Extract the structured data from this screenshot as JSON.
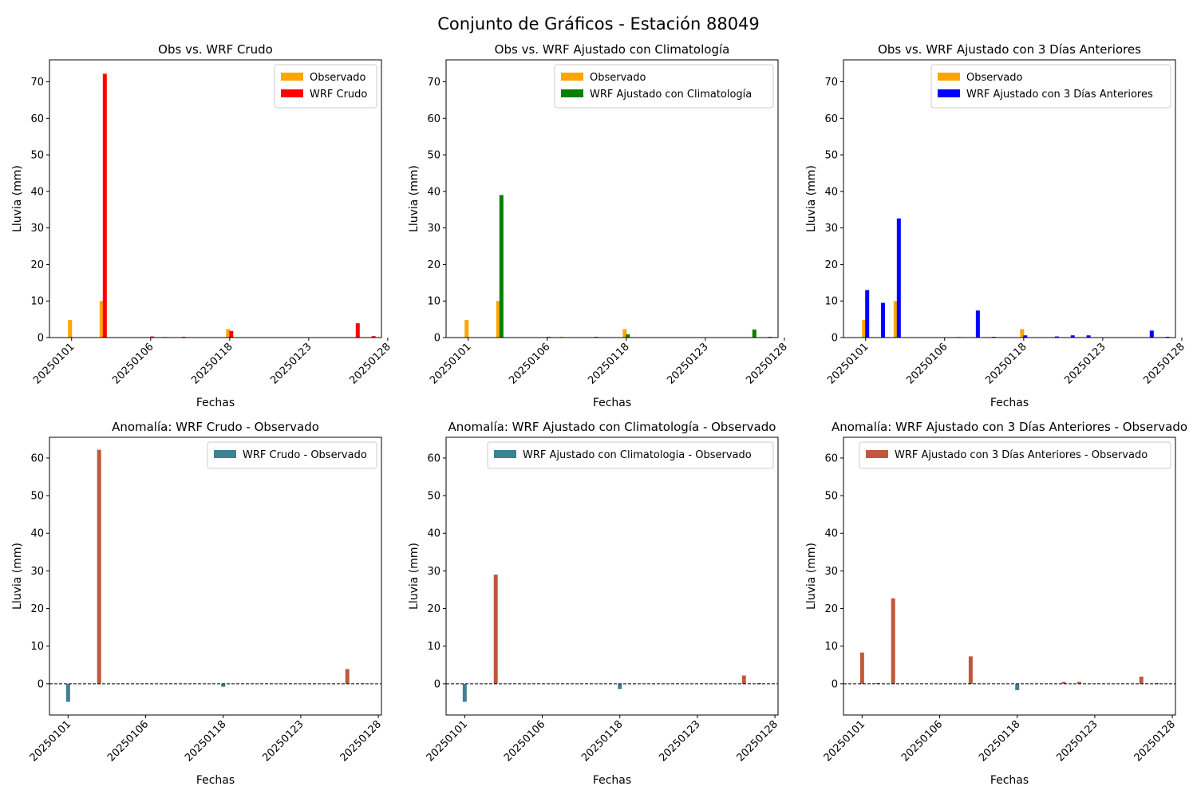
{
  "figure": {
    "title": "Conjunto de Gráficos - Estación 88049"
  },
  "colors": {
    "observado": "#ffa500",
    "wrf_crudo": "#ff0000",
    "wrf_clim": "#008000",
    "wrf_3d": "#0000ff",
    "anom_pos": "#c0583d",
    "anom_neg": "#3f8094",
    "zero_line": "#000000"
  },
  "chart_data": [
    {
      "type": "bar",
      "title": "Obs vs. WRF Crudo",
      "xlabel": "Fechas",
      "ylabel": "Lluvia (mm)",
      "ylim": [
        0,
        76
      ],
      "yticks": [
        0,
        10,
        20,
        30,
        40,
        50,
        60,
        70
      ],
      "xlim": [
        -1.4,
        19.6
      ],
      "xticks": [
        0,
        5,
        10,
        15,
        20
      ],
      "xtick_labels": [
        "20250101",
        "20250106",
        "20250118",
        "20250123",
        "20250128"
      ],
      "legend": "top-right",
      "series": [
        {
          "name": "Observado",
          "color": "#ffa500",
          "points": [
            [
              -0.1,
              4.8
            ],
            [
              1.9,
              10.0
            ],
            [
              5.9,
              0.2
            ],
            [
              9.9,
              2.3
            ]
          ]
        },
        {
          "name": "WRF Crudo",
          "color": "#ff0000",
          "points": [
            [
              2.1,
              72.2
            ],
            [
              5.1,
              0.3
            ],
            [
              7.1,
              0.2
            ],
            [
              10.1,
              1.8
            ],
            [
              18.1,
              3.9
            ],
            [
              19.1,
              0.4
            ]
          ]
        }
      ]
    },
    {
      "type": "bar",
      "title": "Obs vs. WRF Ajustado con Climatología",
      "xlabel": "Fechas",
      "ylabel": "Lluvia (mm)",
      "ylim": [
        0,
        76
      ],
      "yticks": [
        0,
        10,
        20,
        30,
        40,
        50,
        60,
        70
      ],
      "xlim": [
        -1.4,
        19.6
      ],
      "xticks": [
        0,
        5,
        10,
        15,
        20
      ],
      "xtick_labels": [
        "20250101",
        "20250106",
        "20250118",
        "20250123",
        "20250128"
      ],
      "legend": "top-right",
      "series": [
        {
          "name": "Observado",
          "color": "#ffa500",
          "points": [
            [
              -0.1,
              4.8
            ],
            [
              1.9,
              10.0
            ],
            [
              5.9,
              0.2
            ],
            [
              9.9,
              2.3
            ]
          ]
        },
        {
          "name": "WRF Ajustado con Climatología",
          "color": "#008000",
          "points": [
            [
              2.1,
              39.0
            ],
            [
              5.1,
              0.2
            ],
            [
              8.1,
              0.2
            ],
            [
              10.1,
              0.9
            ],
            [
              18.1,
              2.2
            ],
            [
              19.1,
              0.2
            ]
          ]
        }
      ]
    },
    {
      "type": "bar",
      "title": "Obs vs. WRF Ajustado con 3 Días Anteriores",
      "xlabel": "Fechas",
      "ylabel": "Lluvia (mm)",
      "ylim": [
        0,
        76
      ],
      "yticks": [
        0,
        10,
        20,
        30,
        40,
        50,
        60,
        70
      ],
      "xlim": [
        -1.4,
        19.6
      ],
      "xticks": [
        0,
        5,
        10,
        15,
        20
      ],
      "xtick_labels": [
        "20250101",
        "20250106",
        "20250118",
        "20250123",
        "20250128"
      ],
      "legend": "top-right",
      "series": [
        {
          "name": "Observado",
          "color": "#ffa500",
          "points": [
            [
              -0.1,
              4.8
            ],
            [
              1.9,
              10.0
            ],
            [
              5.9,
              0.2
            ],
            [
              9.9,
              2.3
            ]
          ]
        },
        {
          "name": "WRF Ajustado con 3 Días Anteriores",
          "color": "#0000ff",
          "points": [
            [
              0.1,
              13.0
            ],
            [
              1.1,
              9.5
            ],
            [
              2.1,
              32.6
            ],
            [
              7.1,
              7.4
            ],
            [
              8.1,
              0.2
            ],
            [
              10.1,
              0.6
            ],
            [
              12.1,
              0.3
            ],
            [
              13.1,
              0.6
            ],
            [
              14.1,
              0.6
            ],
            [
              18.1,
              1.9
            ],
            [
              19.1,
              0.2
            ]
          ]
        }
      ]
    },
    {
      "type": "bar",
      "title": "Anomalía: WRF Crudo - Observado",
      "xlabel": "Fechas",
      "ylabel": "Lluvia (mm)",
      "ylim": [
        -8.3,
        65.5
      ],
      "yticks": [
        0,
        10,
        20,
        30,
        40,
        50,
        60
      ],
      "xlim": [
        -1.2,
        20.2
      ],
      "xticks": [
        0,
        5,
        10,
        15,
        20
      ],
      "xtick_labels": [
        "20250101",
        "20250106",
        "20250118",
        "20250123",
        "20250128"
      ],
      "legend": "top-right",
      "legend_label": "WRF Crudo - Observado",
      "legend_color": "#3f8094",
      "values": [
        [
          0,
          -4.8
        ],
        [
          2,
          62.2
        ],
        [
          10,
          -0.8
        ],
        [
          18,
          3.9
        ],
        [
          19,
          0.1
        ]
      ]
    },
    {
      "type": "bar",
      "title": "Anomalía: WRF Ajustado con Climatología - Observado",
      "xlabel": "Fechas",
      "ylabel": "Lluvia (mm)",
      "ylim": [
        -8.3,
        65.5
      ],
      "yticks": [
        0,
        10,
        20,
        30,
        40,
        50,
        60
      ],
      "xlim": [
        -1.2,
        20.2
      ],
      "xticks": [
        0,
        5,
        10,
        15,
        20
      ],
      "xtick_labels": [
        "20250101",
        "20250106",
        "20250118",
        "20250123",
        "20250128"
      ],
      "legend": "top-right",
      "legend_label": "WRF Ajustado con Climatologia - Observado",
      "legend_color": "#3f8094",
      "values": [
        [
          0,
          -4.8
        ],
        [
          2,
          29.0
        ],
        [
          10,
          -1.4
        ],
        [
          18,
          2.2
        ],
        [
          19,
          0.2
        ]
      ]
    },
    {
      "type": "bar",
      "title": "Anomalía: WRF Ajustado con 3 Días Anteriores - Observado",
      "xlabel": "Fechas",
      "ylabel": "Lluvia (mm)",
      "ylim": [
        -8.3,
        65.5
      ],
      "yticks": [
        0,
        10,
        20,
        30,
        40,
        50,
        60
      ],
      "xlim": [
        -1.2,
        20.2
      ],
      "xticks": [
        0,
        5,
        10,
        15,
        20
      ],
      "xtick_labels": [
        "20250101",
        "20250106",
        "20250118",
        "20250123",
        "20250128"
      ],
      "legend": "top-right",
      "legend_label": "WRF Ajustado con 3 Días Anteriores - Observado",
      "legend_color": "#c0583d",
      "values": [
        [
          0,
          8.3
        ],
        [
          1,
          0.2
        ],
        [
          2,
          22.7
        ],
        [
          7,
          7.3
        ],
        [
          10,
          -1.7
        ],
        [
          13,
          0.5
        ],
        [
          14,
          0.5
        ],
        [
          18,
          1.9
        ],
        [
          19,
          0.2
        ]
      ]
    }
  ]
}
